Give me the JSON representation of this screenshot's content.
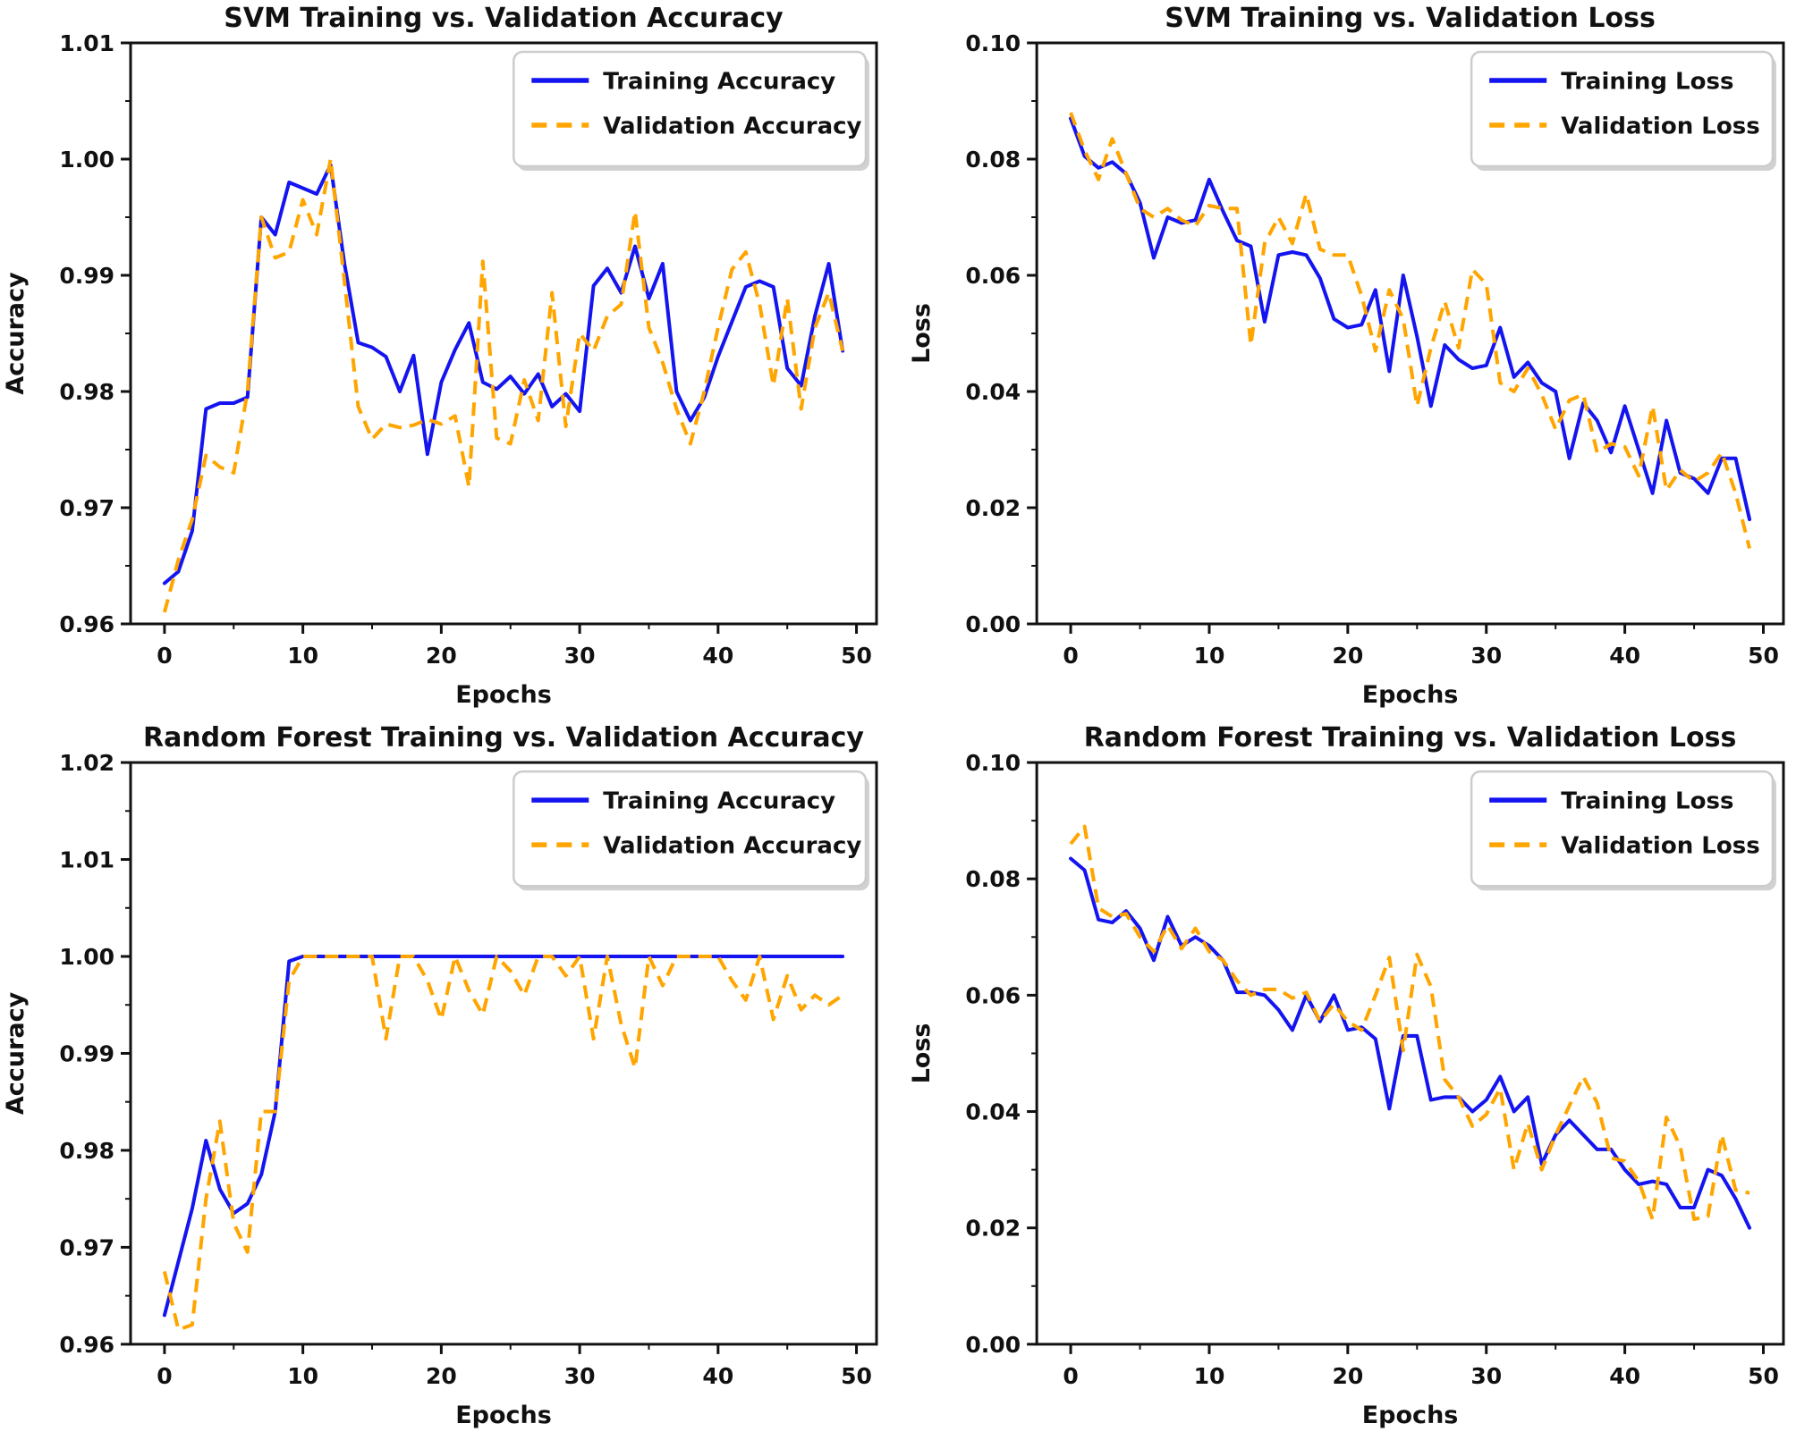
{
  "figure": {
    "background": "#ffffff",
    "colors": {
      "training": "#1414f0",
      "validation": "#ffa500",
      "spine": "#111111",
      "legend_border": "#cccccc",
      "legend_fill": "#ffffff",
      "legend_shadow": "rgba(0,0,0,0.18)"
    }
  },
  "chart_data": [
    {
      "id": "svm-accuracy",
      "type": "line",
      "title": "SVM Training vs. Validation Accuracy",
      "xlabel": "Epochs",
      "ylabel": "Accuracy",
      "xlim": [
        -2.45,
        51.45
      ],
      "ylim": [
        0.96,
        1.01
      ],
      "xticks": [
        {
          "v": 0,
          "label": "0"
        },
        {
          "v": 10,
          "label": "10"
        },
        {
          "v": 20,
          "label": "20"
        },
        {
          "v": 30,
          "label": "30"
        },
        {
          "v": 40,
          "label": "40"
        },
        {
          "v": 50,
          "label": "50"
        }
      ],
      "yticks": [
        {
          "v": 0.96,
          "label": "0.96"
        },
        {
          "v": 0.97,
          "label": "0.97"
        },
        {
          "v": 0.98,
          "label": "0.98"
        },
        {
          "v": 0.99,
          "label": "0.99"
        },
        {
          "v": 1.0,
          "label": "1.00"
        },
        {
          "v": 1.01,
          "label": "1.01"
        }
      ],
      "xminor": [
        5,
        15,
        25,
        35,
        45
      ],
      "yminor": [
        0.965,
        0.975,
        0.985,
        0.995,
        1.005
      ],
      "legend_position": "upper right",
      "grid": false,
      "series": [
        {
          "name": "Training Accuracy",
          "color": "#1414f0",
          "dashed": false,
          "values": [
            0.9635,
            0.9645,
            0.968,
            0.9785,
            0.979,
            0.979,
            0.9795,
            0.995,
            0.9935,
            0.998,
            0.9975,
            0.997,
            0.9995,
            0.991,
            0.9842,
            0.9838,
            0.983,
            0.98,
            0.9831,
            0.9746,
            0.9808,
            0.9836,
            0.9859,
            0.9808,
            0.9802,
            0.9813,
            0.9798,
            0.9815,
            0.9787,
            0.9798,
            0.9783,
            0.9891,
            0.9906,
            0.9885,
            0.9925,
            0.988,
            0.991,
            0.98,
            0.9775,
            0.9795,
            0.983,
            0.986,
            0.989,
            0.9895,
            0.989,
            0.982,
            0.9805,
            0.9865,
            0.991,
            0.9835
          ]
        },
        {
          "name": "Validation Accuracy",
          "color": "#ffa500",
          "dashed": true,
          "values": [
            0.961,
            0.9655,
            0.969,
            0.9745,
            0.9735,
            0.973,
            0.98,
            0.995,
            0.9915,
            0.992,
            0.9965,
            0.9935,
            1.0,
            0.9895,
            0.9787,
            0.9759,
            0.9772,
            0.9769,
            0.9771,
            0.9776,
            0.9772,
            0.9779,
            0.9718,
            0.9912,
            0.976,
            0.9755,
            0.981,
            0.9775,
            0.9885,
            0.977,
            0.985,
            0.9835,
            0.9865,
            0.9875,
            0.9955,
            0.9855,
            0.9825,
            0.9785,
            0.9755,
            0.98,
            0.9855,
            0.9905,
            0.992,
            0.9875,
            0.9805,
            0.988,
            0.9785,
            0.9855,
            0.9885,
            0.9835
          ]
        }
      ]
    },
    {
      "id": "svm-loss",
      "type": "line",
      "title": "SVM Training vs. Validation Loss",
      "xlabel": "Epochs",
      "ylabel": "Loss",
      "xlim": [
        -2.45,
        51.45
      ],
      "ylim": [
        0.0,
        0.1
      ],
      "xticks": [
        {
          "v": 0,
          "label": "0"
        },
        {
          "v": 10,
          "label": "10"
        },
        {
          "v": 20,
          "label": "20"
        },
        {
          "v": 30,
          "label": "30"
        },
        {
          "v": 40,
          "label": "40"
        },
        {
          "v": 50,
          "label": "50"
        }
      ],
      "yticks": [
        {
          "v": 0.0,
          "label": "0.00"
        },
        {
          "v": 0.02,
          "label": "0.02"
        },
        {
          "v": 0.04,
          "label": "0.04"
        },
        {
          "v": 0.06,
          "label": "0.06"
        },
        {
          "v": 0.08,
          "label": "0.08"
        },
        {
          "v": 0.1,
          "label": "0.10"
        }
      ],
      "xminor": [
        5,
        15,
        25,
        35,
        45
      ],
      "yminor": [
        0.01,
        0.03,
        0.05,
        0.07,
        0.09
      ],
      "legend_position": "upper right",
      "grid": false,
      "series": [
        {
          "name": "Training Loss",
          "color": "#1414f0",
          "dashed": false,
          "values": [
            0.087,
            0.0805,
            0.0785,
            0.0795,
            0.0775,
            0.0725,
            0.063,
            0.07,
            0.069,
            0.0695,
            0.0765,
            0.071,
            0.066,
            0.065,
            0.052,
            0.0635,
            0.064,
            0.0635,
            0.0595,
            0.0525,
            0.051,
            0.0515,
            0.0575,
            0.0435,
            0.06,
            0.0495,
            0.0375,
            0.048,
            0.0455,
            0.044,
            0.0445,
            0.051,
            0.0425,
            0.045,
            0.0415,
            0.04,
            0.0285,
            0.038,
            0.035,
            0.0295,
            0.0375,
            0.03,
            0.0225,
            0.035,
            0.026,
            0.025,
            0.0225,
            0.0285,
            0.0285,
            0.018
          ]
        },
        {
          "name": "Validation Loss",
          "color": "#ffa500",
          "dashed": true,
          "values": [
            0.088,
            0.0815,
            0.0765,
            0.0835,
            0.0775,
            0.0715,
            0.07,
            0.0715,
            0.0695,
            0.0685,
            0.072,
            0.0715,
            0.0715,
            0.048,
            0.0655,
            0.07,
            0.0655,
            0.074,
            0.0645,
            0.0635,
            0.0635,
            0.0565,
            0.047,
            0.0575,
            0.0525,
            0.0375,
            0.0475,
            0.0555,
            0.0475,
            0.061,
            0.0585,
            0.0415,
            0.04,
            0.044,
            0.0395,
            0.0335,
            0.0385,
            0.0395,
            0.0295,
            0.031,
            0.0305,
            0.0255,
            0.0375,
            0.023,
            0.0265,
            0.0245,
            0.026,
            0.0295,
            0.0225,
            0.013
          ]
        }
      ]
    },
    {
      "id": "rf-accuracy",
      "type": "line",
      "title": "Random Forest Training vs. Validation Accuracy",
      "xlabel": "Epochs",
      "ylabel": "Accuracy",
      "xlim": [
        -2.45,
        51.45
      ],
      "ylim": [
        0.96,
        1.02
      ],
      "xticks": [
        {
          "v": 0,
          "label": "0"
        },
        {
          "v": 10,
          "label": "10"
        },
        {
          "v": 20,
          "label": "20"
        },
        {
          "v": 30,
          "label": "30"
        },
        {
          "v": 40,
          "label": "40"
        },
        {
          "v": 50,
          "label": "50"
        }
      ],
      "yticks": [
        {
          "v": 0.96,
          "label": "0.96"
        },
        {
          "v": 0.97,
          "label": "0.97"
        },
        {
          "v": 0.98,
          "label": "0.98"
        },
        {
          "v": 0.99,
          "label": "0.99"
        },
        {
          "v": 1.0,
          "label": "1.00"
        },
        {
          "v": 1.01,
          "label": "1.01"
        },
        {
          "v": 1.02,
          "label": "1.02"
        }
      ],
      "xminor": [
        5,
        15,
        25,
        35,
        45
      ],
      "yminor": [
        0.965,
        0.975,
        0.985,
        0.995,
        1.005,
        1.015
      ],
      "legend_position": "upper right",
      "grid": false,
      "series": [
        {
          "name": "Training Accuracy",
          "color": "#1414f0",
          "dashed": false,
          "values": [
            0.963,
            0.9685,
            0.974,
            0.981,
            0.976,
            0.9735,
            0.9745,
            0.9775,
            0.984,
            0.9995,
            1.0,
            1.0,
            1.0,
            1.0,
            1.0,
            1.0,
            1.0,
            1.0,
            1.0,
            1.0,
            1.0,
            1.0,
            1.0,
            1.0,
            1.0,
            1.0,
            1.0,
            1.0,
            1.0,
            1.0,
            1.0,
            1.0,
            1.0,
            1.0,
            1.0,
            1.0,
            1.0,
            1.0,
            1.0,
            1.0,
            1.0,
            1.0,
            1.0,
            1.0,
            1.0,
            1.0,
            1.0,
            1.0,
            1.0,
            1.0
          ]
        },
        {
          "name": "Validation Accuracy",
          "color": "#ffa500",
          "dashed": true,
          "values": [
            0.9675,
            0.9615,
            0.962,
            0.975,
            0.983,
            0.9725,
            0.9695,
            0.984,
            0.984,
            0.9975,
            1.0,
            1.0,
            1.0,
            1.0,
            1.0,
            1.0,
            0.9915,
            1.0,
            1.0,
            0.9975,
            0.9935,
            1.0,
            0.9965,
            0.994,
            1.0,
            0.9985,
            0.996,
            1.0,
            1.0,
            0.998,
            1.0,
            0.9915,
            1.0,
            0.993,
            0.9885,
            1.0,
            0.997,
            1.0,
            1.0,
            1.0,
            1.0,
            0.9975,
            0.9955,
            1.0,
            0.9935,
            0.998,
            0.9945,
            0.996,
            0.995,
            0.996
          ]
        }
      ]
    },
    {
      "id": "rf-loss",
      "type": "line",
      "title": "Random Forest Training vs. Validation Loss",
      "xlabel": "Epochs",
      "ylabel": "Loss",
      "xlim": [
        -2.45,
        51.45
      ],
      "ylim": [
        0.0,
        0.1
      ],
      "xticks": [
        {
          "v": 0,
          "label": "0"
        },
        {
          "v": 10,
          "label": "10"
        },
        {
          "v": 20,
          "label": "20"
        },
        {
          "v": 30,
          "label": "30"
        },
        {
          "v": 40,
          "label": "40"
        },
        {
          "v": 50,
          "label": "50"
        }
      ],
      "yticks": [
        {
          "v": 0.0,
          "label": "0.00"
        },
        {
          "v": 0.02,
          "label": "0.02"
        },
        {
          "v": 0.04,
          "label": "0.04"
        },
        {
          "v": 0.06,
          "label": "0.06"
        },
        {
          "v": 0.08,
          "label": "0.08"
        },
        {
          "v": 0.1,
          "label": "0.10"
        }
      ],
      "xminor": [
        5,
        15,
        25,
        35,
        45
      ],
      "yminor": [
        0.01,
        0.03,
        0.05,
        0.07,
        0.09
      ],
      "legend_position": "upper right",
      "grid": false,
      "series": [
        {
          "name": "Training Loss",
          "color": "#1414f0",
          "dashed": false,
          "values": [
            0.0835,
            0.0815,
            0.073,
            0.0725,
            0.0745,
            0.0715,
            0.066,
            0.0735,
            0.0685,
            0.07,
            0.0685,
            0.066,
            0.0605,
            0.0605,
            0.06,
            0.0575,
            0.054,
            0.06,
            0.0555,
            0.06,
            0.054,
            0.0545,
            0.0525,
            0.0405,
            0.053,
            0.053,
            0.042,
            0.0425,
            0.0425,
            0.04,
            0.042,
            0.046,
            0.04,
            0.0425,
            0.031,
            0.036,
            0.0385,
            0.036,
            0.0335,
            0.0335,
            0.03,
            0.0275,
            0.028,
            0.0275,
            0.0235,
            0.0235,
            0.03,
            0.029,
            0.025,
            0.02
          ]
        },
        {
          "name": "Validation Loss",
          "color": "#ffa500",
          "dashed": true,
          "values": [
            0.086,
            0.089,
            0.075,
            0.0735,
            0.074,
            0.07,
            0.0675,
            0.072,
            0.068,
            0.0715,
            0.0675,
            0.066,
            0.0625,
            0.06,
            0.061,
            0.061,
            0.0595,
            0.0605,
            0.0555,
            0.0585,
            0.0555,
            0.054,
            0.06,
            0.0665,
            0.0505,
            0.067,
            0.0615,
            0.0455,
            0.0425,
            0.0375,
            0.0395,
            0.044,
            0.03,
            0.038,
            0.03,
            0.036,
            0.041,
            0.046,
            0.0415,
            0.032,
            0.0315,
            0.028,
            0.0215,
            0.039,
            0.034,
            0.0215,
            0.022,
            0.036,
            0.0265,
            0.026
          ]
        }
      ]
    }
  ]
}
